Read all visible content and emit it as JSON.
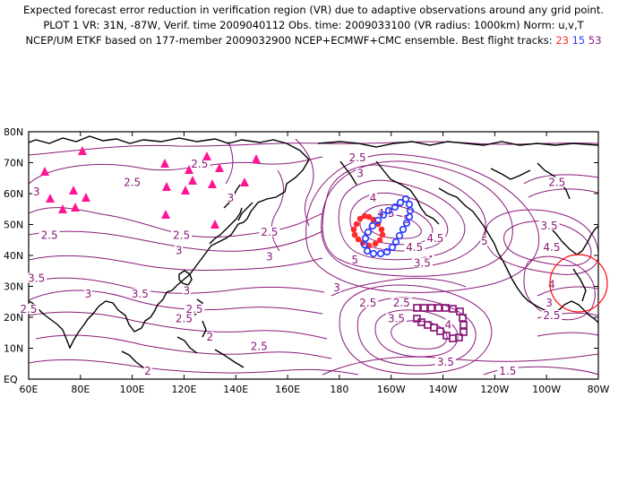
{
  "header": {
    "line1": "Expected forecast error reduction in verification region (VR) due to adaptive observations around any grid point.",
    "line2": "PLOT 1 VR: 31N, -87W, Verif. time 2009040112 Obs. time: 2009033100 (VR radius: 1000km) Norm: u,v,T",
    "line3_prefix": "NCEP/UM ETKF based on 177-member 2009032900 NCEP+ECMWF+CMC ensemble. Best flight tracks:",
    "track_labels": [
      "23",
      "15",
      "53"
    ]
  },
  "colors": {
    "contour": "#8b1a7a",
    "coast": "#000000",
    "triangles": "#ff1493",
    "track23": "#ff2a2a",
    "track15": "#2a3cff",
    "track53": "#8b1a7a",
    "verification_circle": "#ff0000"
  },
  "axes": {
    "lat_labels": [
      "80N",
      "70N",
      "60N",
      "50N",
      "40N",
      "30N",
      "20N",
      "10N",
      "EQ"
    ],
    "lon_labels": [
      "60E",
      "80E",
      "100E",
      "120E",
      "140E",
      "160E",
      "180",
      "160W",
      "140W",
      "120W",
      "100W",
      "80W"
    ]
  },
  "contour_labels": [
    {
      "text": "2.5",
      "lon": 126,
      "lat": 69
    },
    {
      "text": "2.5",
      "lon": 100,
      "lat": 63
    },
    {
      "text": "3",
      "lon": 63,
      "lat": 60
    },
    {
      "text": "2.5",
      "lon": 68,
      "lat": 46
    },
    {
      "text": "2.5",
      "lon": 119,
      "lat": 46
    },
    {
      "text": "3",
      "lon": 118,
      "lat": 41
    },
    {
      "text": "2.5",
      "lon": 153,
      "lat": 47
    },
    {
      "text": "3",
      "lon": 153,
      "lat": 39
    },
    {
      "text": "3.5",
      "lon": 63,
      "lat": 32
    },
    {
      "text": "3",
      "lon": 83,
      "lat": 27
    },
    {
      "text": "3.5",
      "lon": 103,
      "lat": 27
    },
    {
      "text": "2.5",
      "lon": 60,
      "lat": 22
    },
    {
      "text": "3",
      "lon": 121,
      "lat": 28
    },
    {
      "text": "2.5",
      "lon": 124,
      "lat": 22
    },
    {
      "text": "2.5",
      "lon": 120,
      "lat": 19
    },
    {
      "text": "2",
      "lon": 130,
      "lat": 13
    },
    {
      "text": "2.5",
      "lon": 149,
      "lat": 10
    },
    {
      "text": "3",
      "lon": 179,
      "lat": 29
    },
    {
      "text": "3",
      "lon": 138,
      "lat": 58
    },
    {
      "text": "2.5",
      "lon": 187,
      "lat": 71
    },
    {
      "text": "3",
      "lon": 188,
      "lat": 66
    },
    {
      "text": "4",
      "lon": 193,
      "lat": 58
    },
    {
      "text": "4.5",
      "lon": 198,
      "lat": 53
    },
    {
      "text": "5",
      "lon": 206,
      "lat": 51
    },
    {
      "text": "5",
      "lon": 186,
      "lat": 38
    },
    {
      "text": "4.5",
      "lon": 209,
      "lat": 42
    },
    {
      "text": "4.5",
      "lon": 217,
      "lat": 45
    },
    {
      "text": "4",
      "lon": 215,
      "lat": 38
    },
    {
      "text": "3.5",
      "lon": 212,
      "lat": 37
    },
    {
      "text": "5",
      "lon": 236,
      "lat": 44
    },
    {
      "text": "3.5",
      "lon": 261,
      "lat": 49
    },
    {
      "text": "4.5",
      "lon": 262,
      "lat": 42
    },
    {
      "text": "2.5",
      "lon": 264,
      "lat": 63
    },
    {
      "text": "4",
      "lon": 262,
      "lat": 30
    },
    {
      "text": "3",
      "lon": 261,
      "lat": 24
    },
    {
      "text": "2.5",
      "lon": 262,
      "lat": 20
    },
    {
      "text": "2.5",
      "lon": 191,
      "lat": 24
    },
    {
      "text": "2.5",
      "lon": 204,
      "lat": 24
    },
    {
      "text": "3.5",
      "lon": 202,
      "lat": 19
    },
    {
      "text": "4",
      "lon": 222,
      "lat": 17
    },
    {
      "text": "3.5",
      "lon": 221,
      "lat": 5
    },
    {
      "text": "1.5",
      "lon": 245,
      "lat": 2
    },
    {
      "text": "2",
      "lon": 106,
      "lat": 2
    }
  ]
}
